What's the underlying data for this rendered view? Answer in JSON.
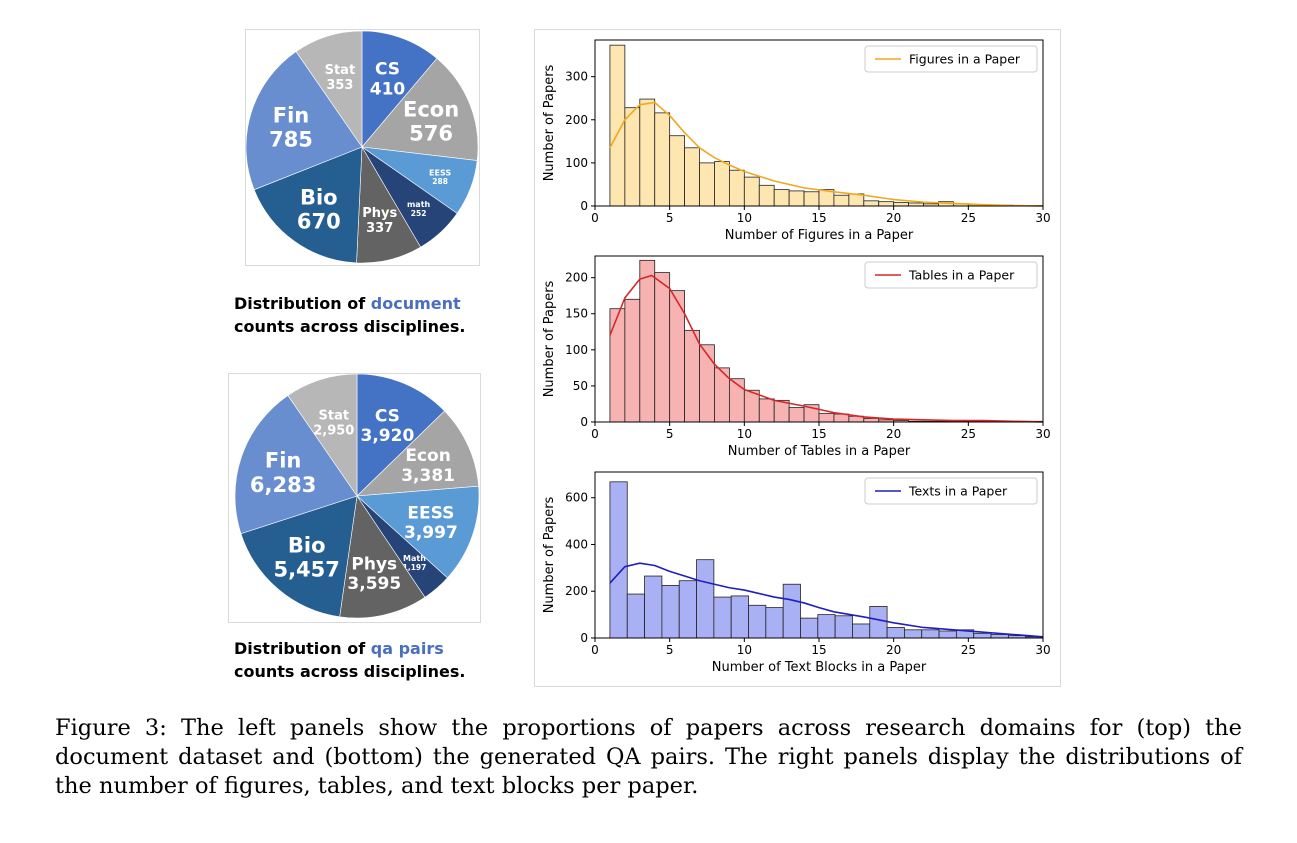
{
  "pie_charts": [
    {
      "caption_prefix": "Distribution of ",
      "caption_highlight": "document",
      "caption_suffix": "counts across disciplines.",
      "slices": [
        {
          "name": "CS",
          "value": "410",
          "count": 410,
          "color": "#4472c4"
        },
        {
          "name": "Econ",
          "value": "576",
          "count": 576,
          "color": "#a5a5a5"
        },
        {
          "name": "EESS",
          "value": "288",
          "count": 288,
          "color": "#5b9bd5"
        },
        {
          "name": "math",
          "value": "252",
          "count": 252,
          "color": "#264478"
        },
        {
          "name": "Phys",
          "value": "337",
          "count": 337,
          "color": "#636363"
        },
        {
          "name": "Bio",
          "value": "670",
          "count": 670,
          "color": "#255e91"
        },
        {
          "name": "Fin",
          "value": "785",
          "count": 785,
          "color": "#698ed0"
        },
        {
          "name": "Stat",
          "value": "353",
          "count": 353,
          "color": "#b7b7b7"
        }
      ]
    },
    {
      "caption_prefix": "Distribution of ",
      "caption_highlight": "qa pairs",
      "caption_suffix": "counts across disciplines.",
      "slices": [
        {
          "name": "CS",
          "value": "3,920",
          "count": 3920,
          "color": "#4472c4"
        },
        {
          "name": "Econ",
          "value": "3,381",
          "count": 3381,
          "color": "#a5a5a5"
        },
        {
          "name": "EESS",
          "value": "3,997",
          "count": 3997,
          "color": "#5b9bd5"
        },
        {
          "name": "Math",
          "value": "1,197",
          "count": 1197,
          "color": "#264478"
        },
        {
          "name": "Phys",
          "value": "3,595",
          "count": 3595,
          "color": "#636363"
        },
        {
          "name": "Bio",
          "value": "5,457",
          "count": 5457,
          "color": "#255e91"
        },
        {
          "name": "Fin",
          "value": "6,283",
          "count": 6283,
          "color": "#698ed0"
        },
        {
          "name": "Stat",
          "value": "2,950",
          "count": 2950,
          "color": "#b7b7b7"
        }
      ]
    }
  ],
  "chart_data": [
    {
      "type": "bar",
      "title": "",
      "xlabel": "Number of Figures in a Paper",
      "ylabel": "Number of Papers",
      "legend": "Figures in a Paper",
      "legend_position": "top-right",
      "xlim": [
        0,
        30
      ],
      "ylim": [
        0,
        385
      ],
      "xticks": [
        "0",
        "5",
        "10",
        "15",
        "20",
        "25",
        "30"
      ],
      "yticks": [
        "0",
        "100",
        "200",
        "300"
      ],
      "ytick_values": [
        0,
        100,
        200,
        300
      ],
      "bar_color": "#fde6b0",
      "line_color": "#f0a81c",
      "bin_edges": [
        1,
        2,
        3,
        4,
        5,
        6,
        7,
        8,
        9,
        10,
        11,
        12,
        13,
        14,
        15,
        16,
        17,
        18,
        19,
        20,
        21,
        22,
        23,
        24,
        25,
        26,
        27,
        28,
        29,
        30
      ],
      "values": [
        373,
        228,
        248,
        216,
        163,
        135,
        100,
        103,
        83,
        67,
        48,
        38,
        35,
        33,
        38,
        25,
        28,
        12,
        10,
        8,
        7,
        5,
        10,
        5,
        3,
        2,
        2,
        1,
        1
      ],
      "kde_x": [
        1,
        2,
        3,
        4,
        5,
        6,
        7,
        8,
        9,
        10,
        12,
        14,
        16,
        18,
        20,
        22,
        24,
        26,
        28,
        30
      ],
      "kde_y": [
        135,
        200,
        235,
        240,
        210,
        170,
        135,
        112,
        95,
        80,
        58,
        42,
        33,
        25,
        15,
        9,
        6,
        3,
        1,
        0
      ]
    },
    {
      "type": "bar",
      "title": "",
      "xlabel": "Number of Tables in a Paper",
      "ylabel": "Number of Papers",
      "legend": "Tables in a Paper",
      "legend_position": "top-right",
      "xlim": [
        0,
        30
      ],
      "ylim": [
        0,
        230
      ],
      "xticks": [
        "0",
        "5",
        "10",
        "15",
        "20",
        "25",
        "30"
      ],
      "yticks": [
        "0",
        "50",
        "100",
        "150",
        "200"
      ],
      "ytick_values": [
        0,
        50,
        100,
        150,
        200
      ],
      "bar_color": "#f7b2b2",
      "line_color": "#d62728",
      "bin_edges": [
        1,
        2,
        3,
        4,
        5,
        6,
        7,
        8,
        9,
        10,
        11,
        12,
        13,
        14,
        15,
        16,
        17,
        18,
        19,
        20,
        21,
        22,
        23,
        24,
        25,
        26,
        27,
        28,
        29,
        30
      ],
      "values": [
        157,
        170,
        224,
        207,
        182,
        127,
        107,
        75,
        60,
        44,
        32,
        30,
        20,
        24,
        12,
        11,
        8,
        5,
        3,
        2,
        1,
        1,
        1,
        1,
        1,
        1,
        1,
        1,
        1
      ],
      "kde_x": [
        1,
        2,
        3,
        3.8,
        5,
        6,
        7,
        8,
        9,
        10,
        12,
        14,
        16,
        18,
        20,
        22,
        24,
        26,
        28,
        30
      ],
      "kde_y": [
        120,
        172,
        198,
        203,
        185,
        150,
        108,
        80,
        60,
        45,
        30,
        22,
        13,
        7,
        4,
        3,
        2,
        2,
        1,
        0
      ]
    },
    {
      "type": "bar",
      "title": "",
      "xlabel": "Number of Text Blocks in a Paper",
      "ylabel": "Number of Papers",
      "legend": "Texts in a Paper",
      "legend_position": "top-right",
      "xlim": [
        0,
        30
      ],
      "ylim": [
        0,
        710
      ],
      "xticks": [
        "0",
        "5",
        "10",
        "15",
        "20",
        "25",
        "30"
      ],
      "yticks": [
        "0",
        "200",
        "400",
        "600"
      ],
      "ytick_values": [
        0,
        200,
        400,
        600
      ],
      "bar_color": "#aab0f4",
      "line_color": "#1f1fbf",
      "bin_edges": [
        1,
        2.16,
        3.32,
        4.48,
        5.64,
        6.8,
        7.96,
        9.12,
        10.28,
        11.44,
        12.6,
        13.76,
        14.92,
        16.08,
        17.24,
        18.4,
        19.56,
        20.72,
        21.88,
        23.04,
        24.2,
        25.36,
        26.52,
        27.68,
        28.84,
        30
      ],
      "values": [
        668,
        188,
        265,
        225,
        245,
        335,
        175,
        180,
        140,
        130,
        230,
        85,
        100,
        95,
        60,
        135,
        45,
        35,
        35,
        30,
        35,
        20,
        15,
        10,
        5
      ],
      "kde_x": [
        1,
        2,
        3,
        4,
        5,
        6,
        7,
        8,
        9,
        10,
        11,
        12,
        13,
        14,
        15,
        16,
        18,
        20,
        22,
        24,
        26,
        28,
        30
      ],
      "kde_y": [
        235,
        305,
        320,
        310,
        285,
        265,
        245,
        230,
        215,
        205,
        190,
        175,
        165,
        150,
        130,
        112,
        90,
        65,
        45,
        35,
        25,
        15,
        5
      ]
    }
  ],
  "figure_caption": "Figure 3:  The left panels show the proportions of papers across research domains for (top) the document dataset and (bottom) the generated QA pairs. The right panels display the distributions of the number of figures, tables, and text blocks per paper."
}
